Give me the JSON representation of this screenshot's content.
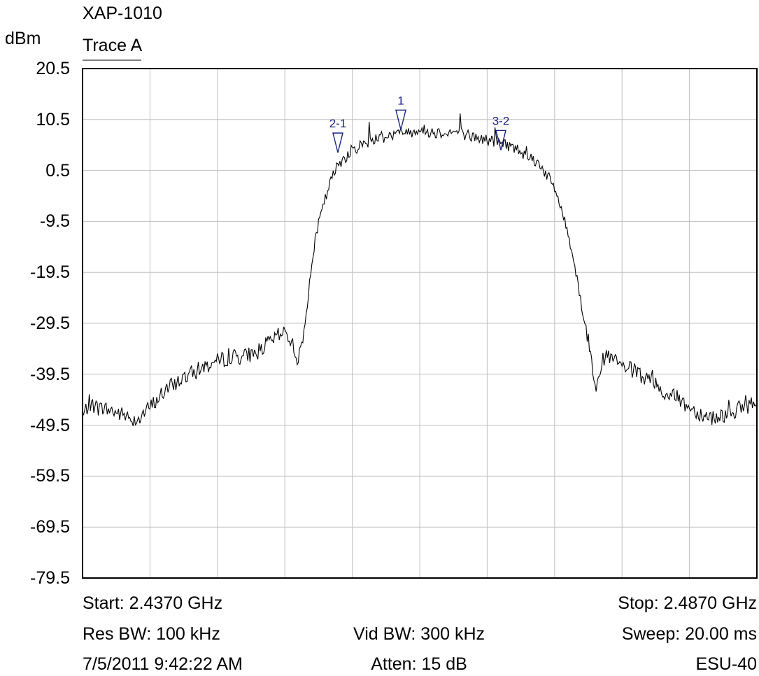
{
  "header": {
    "device": "XAP-1010",
    "unit": "dBm",
    "trace": "Trace A"
  },
  "footer": {
    "start": "Start: 2.4370 GHz",
    "stop": "Stop: 2.4870 GHz",
    "res_bw": "Res BW: 100 kHz",
    "vid_bw": "Vid BW: 300 kHz",
    "sweep": "Sweep: 20.00 ms",
    "timestamp": "7/5/2011 9:42:22 AM",
    "atten": "Atten: 15 dB",
    "model": "ESU-40"
  },
  "chart_data": {
    "type": "line",
    "title": "XAP-1010",
    "ylabel": "dBm",
    "xlim": [
      2.437,
      2.487
    ],
    "x_unit": "GHz",
    "ylim": [
      -79.5,
      20.5
    ],
    "y_ticks": [
      "20.5",
      "10.5",
      "0.5",
      "-9.5",
      "-19.5",
      "-29.5",
      "-39.5",
      "-49.5",
      "-59.5",
      "-69.5",
      "-79.5"
    ],
    "x_divisions": 10,
    "grid": true,
    "series": [
      {
        "name": "Trace A",
        "color": "#000000",
        "x": [
          2.437,
          2.4375,
          2.438,
          2.439,
          2.44,
          2.441,
          2.442,
          2.443,
          2.444,
          2.445,
          2.446,
          2.447,
          2.448,
          2.449,
          2.45,
          2.451,
          2.452,
          2.4525,
          2.453,
          2.4535,
          2.454,
          2.4545,
          2.455,
          2.4555,
          2.456,
          2.457,
          2.458,
          2.459,
          2.46,
          2.461,
          2.462,
          2.463,
          2.464,
          2.465,
          2.466,
          2.467,
          2.468,
          2.469,
          2.47,
          2.471,
          2.472,
          2.4725,
          2.473,
          2.4735,
          2.474,
          2.4745,
          2.475,
          2.4755,
          2.476,
          2.477,
          2.478,
          2.479,
          2.48,
          2.481,
          2.482,
          2.483,
          2.484,
          2.485,
          2.486,
          2.487
        ],
        "y": [
          -48,
          -45,
          -46,
          -46.5,
          -47.5,
          -48.5,
          -46,
          -43,
          -41,
          -39.5,
          -38,
          -37,
          -36,
          -36,
          -35,
          -33,
          -31,
          -33,
          -37,
          -30,
          -17,
          -10,
          -5,
          -1,
          2,
          4.5,
          6,
          7,
          7.5,
          8,
          8.5,
          8,
          8,
          8,
          7,
          6.5,
          6,
          5,
          3.5,
          1.5,
          -3,
          -7,
          -12,
          -18,
          -26,
          -33,
          -41,
          -37,
          -36,
          -38,
          -39,
          -41,
          -43,
          -44,
          -46,
          -47.5,
          -48,
          -47,
          -46,
          -45
        ]
      }
    ],
    "markers": [
      {
        "label": "1",
        "x": 2.4556,
        "y": 8.5
      },
      {
        "label": "2-1",
        "x": 2.4559,
        "y": 4.0
      },
      {
        "label": "3-2",
        "x": 2.468,
        "y": 4.5
      }
    ]
  }
}
